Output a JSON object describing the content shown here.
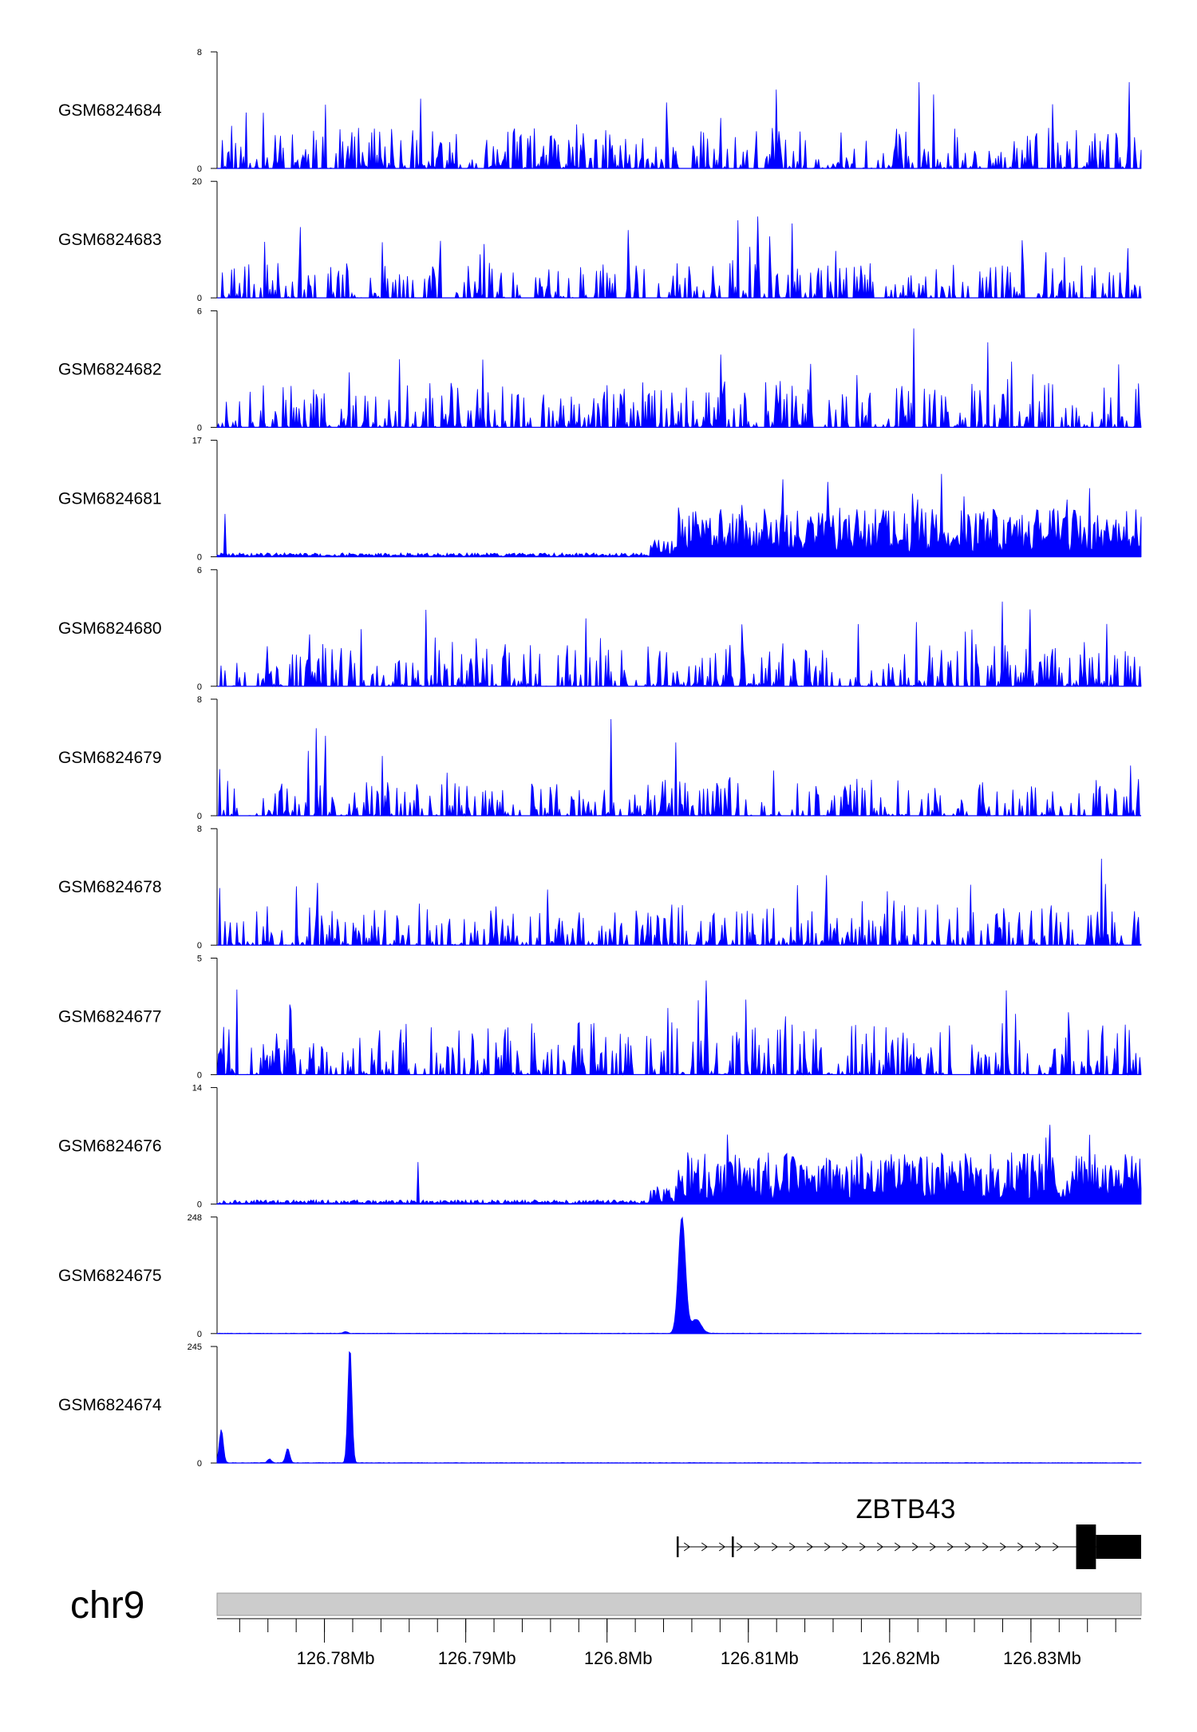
{
  "chart_data": {
    "type": "area",
    "color": "#0000ff",
    "chromosome": "chr9",
    "x_range": [
      126.7724,
      126.8378
    ],
    "x_unit": "Mb",
    "x_tick_labels": [
      "126.78Mb",
      "126.79Mb",
      "126.8Mb",
      "126.81Mb",
      "126.82Mb",
      "126.83Mb"
    ],
    "x_ticks": [
      126.78,
      126.79,
      126.8,
      126.81,
      126.82,
      126.83
    ],
    "tracks": [
      {
        "name": "GSM6824684",
        "ymax": 8,
        "ymax_label": "8",
        "ymin_label": "0",
        "profile": "noisy",
        "seed": 11,
        "baseline": 0.4,
        "level": 0.35,
        "peaks": []
      },
      {
        "name": "GSM6824683",
        "ymax": 20,
        "ymax_label": "20",
        "ymin_label": "0",
        "profile": "sparse",
        "seed": 23,
        "baseline": 0.2,
        "level": 0.3,
        "peaks": []
      },
      {
        "name": "GSM6824682",
        "ymax": 6,
        "ymax_label": "6",
        "ymin_label": "0",
        "profile": "noisy",
        "seed": 37,
        "baseline": 0.6,
        "level": 0.4,
        "peaks": []
      },
      {
        "name": "GSM6824681",
        "ymax": 17,
        "ymax_label": "17",
        "ymin_label": "0",
        "profile": "ramp",
        "seed": 41,
        "baseline": 0.3,
        "level": 0.42,
        "peaks": []
      },
      {
        "name": "GSM6824680",
        "ymax": 6,
        "ymax_label": "6",
        "ymin_label": "0",
        "profile": "noisy",
        "seed": 53,
        "baseline": 0.4,
        "level": 0.38,
        "peaks": []
      },
      {
        "name": "GSM6824679",
        "ymax": 8,
        "ymax_label": "8",
        "ymin_label": "0",
        "profile": "noisy",
        "seed": 67,
        "baseline": 0.5,
        "level": 0.32,
        "peaks": []
      },
      {
        "name": "GSM6824678",
        "ymax": 8,
        "ymax_label": "8",
        "ymin_label": "0",
        "profile": "noisy",
        "seed": 79,
        "baseline": 0.5,
        "level": 0.35,
        "peaks": []
      },
      {
        "name": "GSM6824677",
        "ymax": 5,
        "ymax_label": "5",
        "ymin_label": "0",
        "profile": "noisy",
        "seed": 83,
        "baseline": 0.8,
        "level": 0.45,
        "peaks": []
      },
      {
        "name": "GSM6824676",
        "ymax": 14,
        "ymax_label": "14",
        "ymin_label": "0",
        "profile": "ramp",
        "seed": 97,
        "baseline": 0.3,
        "level": 0.45,
        "peaks": []
      },
      {
        "name": "GSM6824675",
        "ymax": 248,
        "ymax_label": "248",
        "ymin_label": "0",
        "profile": "peaks",
        "seed": 101,
        "baseline": 1.0,
        "level": 0.0,
        "peaks": [
          {
            "x": 126.8053,
            "height": 248,
            "width": 0.00035
          },
          {
            "x": 126.8063,
            "height": 30,
            "width": 0.0005
          },
          {
            "x": 126.7815,
            "height": 4,
            "width": 0.0002
          }
        ]
      },
      {
        "name": "GSM6824674",
        "ymax": 245,
        "ymax_label": "245",
        "ymin_label": "0",
        "profile": "peaks",
        "seed": 113,
        "baseline": 1.0,
        "level": 0.0,
        "peaks": [
          {
            "x": 126.7818,
            "height": 245,
            "width": 0.0002
          },
          {
            "x": 126.7727,
            "height": 70,
            "width": 0.0002
          },
          {
            "x": 126.7774,
            "height": 30,
            "width": 0.0002
          },
          {
            "x": 126.7761,
            "height": 8,
            "width": 0.0002
          }
        ]
      }
    ],
    "gene": {
      "name": "ZBTB43",
      "strand": "+",
      "start": 126.805,
      "end": 126.8378,
      "exons": [
        {
          "start": 126.805,
          "end": 126.80505,
          "type": "tick"
        },
        {
          "start": 126.8089,
          "end": 126.80895,
          "type": "tick"
        },
        {
          "start": 126.8332,
          "end": 126.8346,
          "type": "utr"
        },
        {
          "start": 126.8346,
          "end": 126.8378,
          "type": "cds"
        }
      ]
    }
  }
}
